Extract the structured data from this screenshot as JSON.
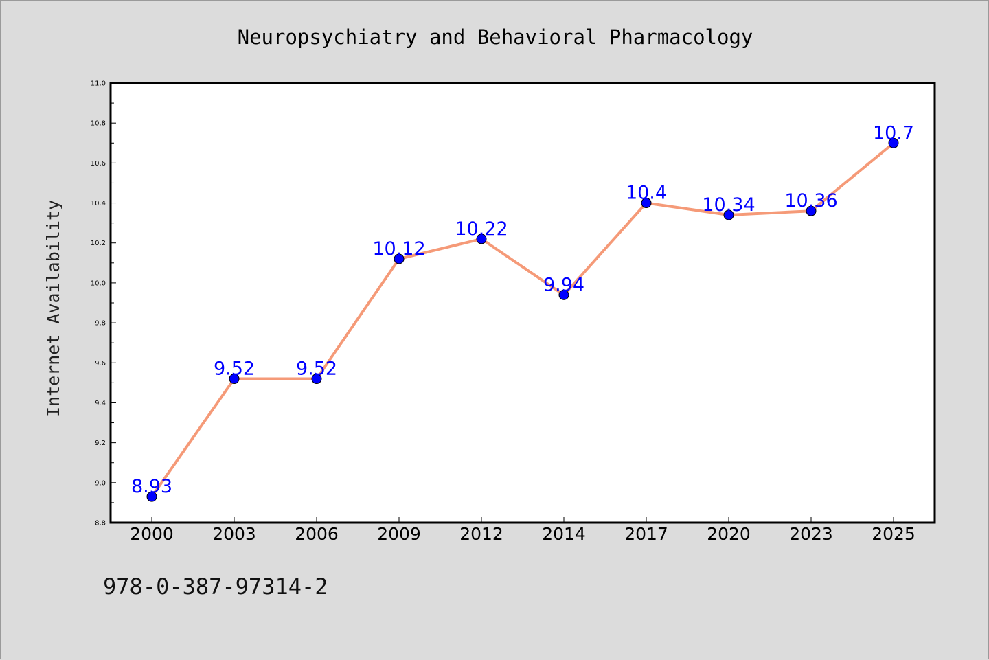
{
  "colors": {
    "figure_background": "#dcdcdc",
    "plot_background": "#ffffff",
    "line": "#f59a78",
    "marker_fill": "#0000ff",
    "marker_edge": "#000000",
    "data_label": "#0000ff",
    "axis": "#000000"
  },
  "footer": {
    "text": "978-0-387-97314-2"
  },
  "chart_data": {
    "type": "line",
    "title": "Neuropsychiatry and Behavioral Pharmacology",
    "xlabel": "",
    "ylabel": "Internet Availability",
    "categories": [
      "2000",
      "2003",
      "2006",
      "2009",
      "2012",
      "2014",
      "2017",
      "2020",
      "2023",
      "2025"
    ],
    "series": [
      {
        "values": [
          8.93,
          9.52,
          9.52,
          10.12,
          10.22,
          9.94,
          10.4,
          10.34,
          10.36,
          10.7
        ],
        "labels": [
          "8.93",
          "9.52",
          "9.52",
          "10.12",
          "10.22",
          "9.94",
          "10.4",
          "10.34",
          "10.36",
          "10.7"
        ],
        "marker": "circle",
        "line_color": "#f59a78",
        "marker_color": "#0000ff"
      }
    ],
    "ylim": [
      8.8,
      11.0
    ],
    "yticks": [
      "8.8",
      "9.0",
      "9.2",
      "9.4",
      "9.6",
      "9.8",
      "10.0",
      "10.2",
      "10.4",
      "10.6",
      "10.8",
      "11.0"
    ],
    "y_minor_step": 0.1,
    "grid": false,
    "legend": "none"
  }
}
